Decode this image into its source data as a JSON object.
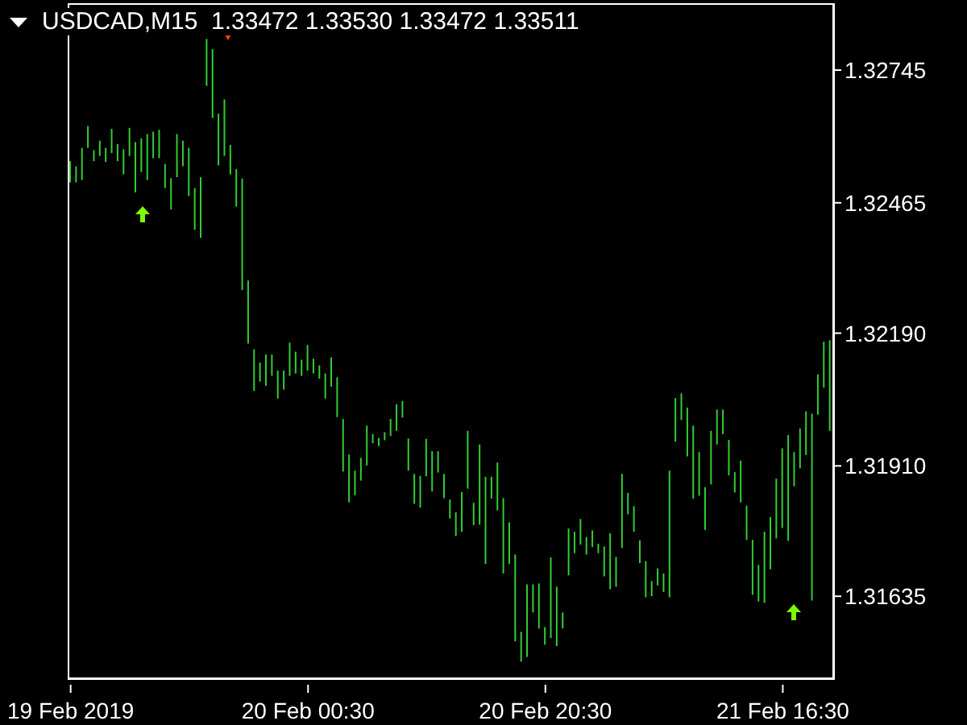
{
  "chart_data": {
    "type": "bar",
    "title": "USDCAD,M15  1.33472 1.33530 1.33472 1.33511",
    "categories": [
      "19 Feb 2019",
      null,
      null,
      null,
      null,
      null,
      null,
      null,
      null,
      null,
      null,
      null,
      null,
      null,
      null,
      null,
      null,
      null,
      null,
      null,
      null,
      null,
      null,
      null,
      null,
      null,
      null,
      null,
      null,
      null,
      null,
      null,
      null,
      null,
      null,
      null,
      null,
      null,
      null,
      null,
      "20 Feb 00:30",
      null,
      null,
      null,
      null,
      null,
      null,
      null,
      null,
      null,
      null,
      null,
      null,
      null,
      null,
      null,
      null,
      null,
      null,
      null,
      null,
      null,
      null,
      null,
      null,
      null,
      null,
      null,
      null,
      null,
      null,
      null,
      null,
      null,
      null,
      null,
      null,
      null,
      null,
      null,
      "20 Feb 20:30",
      null,
      null,
      null,
      null,
      null,
      null,
      null,
      null,
      null,
      null,
      null,
      null,
      null,
      null,
      null,
      null,
      null,
      null,
      null,
      null,
      null,
      null,
      null,
      null,
      null,
      null,
      null,
      null,
      null,
      null,
      null,
      null,
      null,
      null,
      null,
      null,
      null,
      null,
      null,
      "21 Feb 16:30",
      null,
      null,
      null,
      null,
      null,
      null,
      null,
      null
    ],
    "base": [
      1.32508,
      1.32508,
      1.32513,
      1.32581,
      1.32553,
      1.32564,
      1.32551,
      1.3257,
      1.32553,
      1.32525,
      1.32564,
      1.32487,
      1.3253,
      1.32513,
      1.32559,
      1.32559,
      1.32496,
      1.32451,
      1.32519,
      1.32542,
      1.32479,
      1.32408,
      1.32391,
      1.32712,
      1.32644,
      1.32544,
      1.32564,
      1.32525,
      1.32457,
      1.32281,
      1.32168,
      1.32068,
      1.32088,
      1.32079,
      1.321,
      1.32052,
      1.32071,
      1.321,
      1.32105,
      1.321,
      1.32111,
      1.32105,
      1.32094,
      1.32052,
      1.32077,
      1.32013,
      1.31898,
      1.31833,
      1.31848,
      1.31879,
      1.31911,
      1.31958,
      1.31952,
      1.31964,
      1.31973,
      1.31984,
      1.32012,
      1.319,
      1.3183,
      1.31822,
      1.31888,
      1.31856,
      1.31896,
      1.31842,
      1.31799,
      1.31762,
      1.31771,
      1.31862,
      1.31785,
      1.31786,
      1.31703,
      1.31841,
      1.31816,
      1.31683,
      1.31703,
      1.3154,
      1.31497,
      1.31507,
      1.31601,
      1.31567,
      1.31533,
      1.31547,
      1.3153,
      1.31567,
      1.31679,
      1.31726,
      1.31744,
      1.31723,
      1.31739,
      1.31726,
      1.31677,
      1.3165,
      1.31655,
      1.31737,
      1.31808,
      1.31771,
      1.31705,
      1.31633,
      1.31635,
      1.31658,
      1.31644,
      1.31633,
      1.31961,
      1.32007,
      1.3193,
      1.31841,
      1.31847,
      1.31775,
      1.31871,
      1.31955,
      1.31977,
      1.3189,
      1.31854,
      1.31833,
      1.31754,
      1.31638,
      1.31624,
      1.31621,
      1.31692,
      1.31757,
      1.31779,
      1.31752,
      1.31867,
      1.31905,
      1.31933,
      1.31626,
      1.32018,
      1.32075,
      1.31984
    ],
    "values": [
      0.00045,
      0.00034,
      0.00068,
      0.00046,
      0.00023,
      0.00032,
      0.0003,
      0.00051,
      0.00036,
      0.00053,
      0.00059,
      0.00106,
      0.00071,
      0.00097,
      0.00056,
      0.0006,
      0.00051,
      0.00066,
      0.00091,
      0.00054,
      0.00102,
      0.00088,
      0.00128,
      0.00099,
      0.00145,
      0.00109,
      0.00119,
      0.00062,
      0.00079,
      0.00235,
      0.00133,
      0.00088,
      0.0004,
      0.00066,
      0.00045,
      0.00059,
      0.0004,
      0.0007,
      0.00046,
      0.00034,
      0.00054,
      0.00031,
      0.00028,
      0.00053,
      0.00062,
      0.00084,
      0.00111,
      0.00101,
      0.00052,
      0.00048,
      0.00084,
      0.00019,
      0.00017,
      0.00017,
      0.00036,
      0.00056,
      0.00035,
      0.00068,
      0.00063,
      0.00067,
      0.00079,
      0.00085,
      0.00045,
      0.00051,
      0.0004,
      0.0005,
      0.00084,
      0.00122,
      0.00047,
      0.00169,
      0.00184,
      0.00046,
      0.00101,
      0.00159,
      0.00088,
      0.00183,
      0.00063,
      0.00153,
      0.00059,
      0.00095,
      0.00037,
      0.0017,
      0.00125,
      0.00034,
      0.00099,
      0.00045,
      0.00054,
      0.00037,
      0.00035,
      0.0002,
      0.00063,
      0.00118,
      0.00063,
      0.00156,
      0.00045,
      0.00054,
      0.00048,
      0.00076,
      0.00032,
      0.00036,
      0.00039,
      0.00267,
      0.00092,
      0.00056,
      0.00103,
      0.00154,
      0.00092,
      0.0009,
      0.00113,
      0.00074,
      0.00052,
      0.00075,
      0.00043,
      0.00088,
      0.00072,
      0.00116,
      0.00077,
      0.0015,
      0.0011,
      0.00126,
      0.00168,
      0.00223,
      0.00072,
      0.00084,
      0.00092,
      0.00394,
      0.00085,
      0.00097,
      0.00191
    ],
    "color": "#32cd32",
    "ylim": [
      1.31462,
      1.32886
    ],
    "yticks": [
      1.32745,
      1.32465,
      {
        "value": 1.3219,
        "label": "1.32190"
      },
      {
        "value": 1.3191,
        "label": "1.31910"
      },
      1.31635
    ]
  }
}
